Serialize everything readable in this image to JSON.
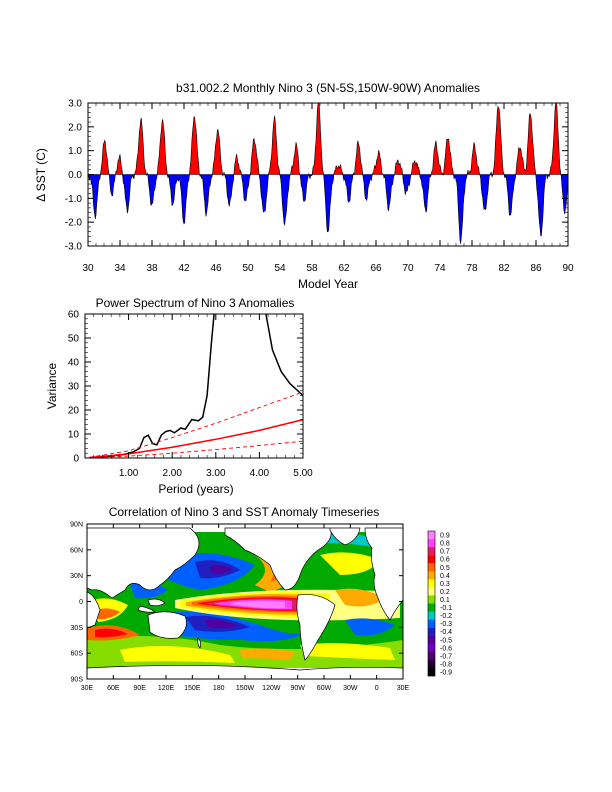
{
  "chart_data": [
    {
      "type": "area",
      "title": "b31.002.2 Monthly Nino 3 (5N-5S,150W-90W) Anomalies",
      "xlabel": "Model Year",
      "ylabel": "Δ SST (C)",
      "xlim": [
        30,
        90
      ],
      "ylim": [
        -3.0,
        3.0
      ],
      "x_ticks": [
        "30",
        "34",
        "38",
        "42",
        "46",
        "50",
        "54",
        "58",
        "62",
        "66",
        "70",
        "74",
        "78",
        "82",
        "86",
        "90"
      ],
      "y_ticks": [
        "3.0",
        "2.0",
        "1.0",
        "0.0",
        "-1.0",
        "-2.0",
        "-3.0"
      ],
      "fill_colors": {
        "positive": "#ff0000",
        "negative": "#0000ff"
      },
      "events_year_peak": [
        [
          30.9,
          -1.7
        ],
        [
          32.1,
          1.4
        ],
        [
          33.0,
          -0.8
        ],
        [
          33.9,
          0.7
        ],
        [
          34.9,
          -1.5
        ],
        [
          36.6,
          2.3
        ],
        [
          38.0,
          -1.3
        ],
        [
          39.3,
          2.3
        ],
        [
          40.6,
          -1.2
        ],
        [
          42.0,
          -2.0
        ],
        [
          43.3,
          2.5
        ],
        [
          44.8,
          -1.6
        ],
        [
          46.2,
          1.9
        ],
        [
          47.7,
          -1.3
        ],
        [
          48.6,
          0.7
        ],
        [
          49.7,
          -1.1
        ],
        [
          50.8,
          1.5
        ],
        [
          52.0,
          -1.7
        ],
        [
          53.3,
          2.3
        ],
        [
          54.6,
          -2.1
        ],
        [
          56.0,
          1.2
        ],
        [
          57.0,
          -1.1
        ],
        [
          58.8,
          3.0
        ],
        [
          60.0,
          -2.4
        ],
        [
          61.3,
          0.4
        ],
        [
          62.6,
          -1.1
        ],
        [
          63.8,
          1.3
        ],
        [
          64.8,
          -1.0
        ],
        [
          66.3,
          0.9
        ],
        [
          67.6,
          -1.4
        ],
        [
          68.8,
          0.6
        ],
        [
          69.8,
          -0.8
        ],
        [
          70.9,
          0.6
        ],
        [
          72.2,
          -1.5
        ],
        [
          73.5,
          1.3
        ],
        [
          75.0,
          1.6
        ],
        [
          76.6,
          -2.8
        ],
        [
          78.3,
          1.2
        ],
        [
          79.6,
          -1.6
        ],
        [
          81.3,
          3.0
        ],
        [
          82.8,
          -1.7
        ],
        [
          84.0,
          1.2
        ],
        [
          85.3,
          2.6
        ],
        [
          86.6,
          -2.6
        ],
        [
          88.5,
          3.0
        ],
        [
          89.6,
          -1.5
        ]
      ]
    },
    {
      "type": "line",
      "title": "Power Spectrum of Nino 3 Anomalies",
      "xlabel": "Period (years)",
      "ylabel": "Variance",
      "xlim": [
        0.0,
        5.0
      ],
      "ylim": [
        0,
        60
      ],
      "x_ticks": [
        "1.00",
        "2.00",
        "3.00",
        "4.00",
        "5.00"
      ],
      "y_ticks": [
        "0",
        "10",
        "20",
        "30",
        "40",
        "50",
        "60"
      ],
      "series": [
        {
          "color": "#000000",
          "style": "solid",
          "x": [
            0.1,
            0.3,
            0.6,
            0.9,
            1.1,
            1.25,
            1.35,
            1.45,
            1.55,
            1.65,
            1.75,
            1.85,
            1.95,
            2.05,
            2.2,
            2.3,
            2.45,
            2.6,
            2.7,
            2.8,
            2.9,
            2.96
          ],
          "y": [
            0.1,
            0.3,
            0.8,
            1.5,
            2.5,
            4.0,
            8.5,
            9.5,
            6.0,
            5.5,
            9.5,
            11.0,
            11.5,
            10.5,
            12.5,
            12.0,
            16.0,
            15.5,
            17.0,
            26.0,
            48.0,
            60.0
          ]
        },
        {
          "color": "#000000",
          "style": "solid",
          "x": [
            4.15,
            4.3,
            4.5,
            4.7,
            4.85,
            5.0
          ],
          "y": [
            60.0,
            45.0,
            36.0,
            31.0,
            28.5,
            26.0
          ]
        },
        {
          "color": "#ff0000",
          "style": "solid",
          "x": [
            0.1,
            1.0,
            2.0,
            3.0,
            4.0,
            5.0
          ],
          "y": [
            0.2,
            1.7,
            4.5,
            7.8,
            11.5,
            16.0
          ]
        },
        {
          "color": "#ff0000",
          "style": "dashed",
          "x": [
            0.1,
            1.0,
            2.0,
            3.0,
            4.0,
            5.0
          ],
          "y": [
            0.3,
            3.0,
            8.5,
            14.5,
            21.0,
            27.5
          ]
        },
        {
          "color": "#ff0000",
          "style": "dashed",
          "x": [
            0.1,
            1.0,
            2.0,
            3.0,
            4.0,
            5.0
          ],
          "y": [
            0.1,
            0.8,
            2.0,
            3.5,
            5.2,
            7.0
          ]
        }
      ]
    },
    {
      "type": "heatmap",
      "title": "Correlation of Nino 3 and SST Anomaly Timeseries",
      "lon_labels": [
        "30E",
        "60E",
        "90E",
        "120E",
        "150E",
        "180",
        "150W",
        "120W",
        "90W",
        "60W",
        "30W",
        "0",
        "30E"
      ],
      "lat_labels": [
        "90N",
        "60N",
        "30N",
        "0",
        "30S",
        "60S",
        "90S"
      ],
      "lon_range": [
        30,
        390
      ],
      "lat_range": [
        -90,
        90
      ],
      "colorbar": {
        "labels": [
          "0.9",
          "0.8",
          "0.7",
          "0.6",
          "0.5",
          "0.4",
          "0.3",
          "0.2",
          "0.1",
          "-0.1",
          "-0.2",
          "-0.3",
          "-0.4",
          "-0.5",
          "-0.6",
          "-0.7",
          "-0.8",
          "-0.9"
        ],
        "colors": [
          "#ff80ff",
          "#ff40ff",
          "#e02060",
          "#ff0000",
          "#ff6600",
          "#ffaa00",
          "#ffff00",
          "#ffff80",
          "#88dd00",
          "#00aa00",
          "#00c8c8",
          "#0060ff",
          "#2020c0",
          "#5000a0",
          "#7000c0",
          "#500070",
          "#200030",
          "#000000"
        ]
      }
    }
  ]
}
